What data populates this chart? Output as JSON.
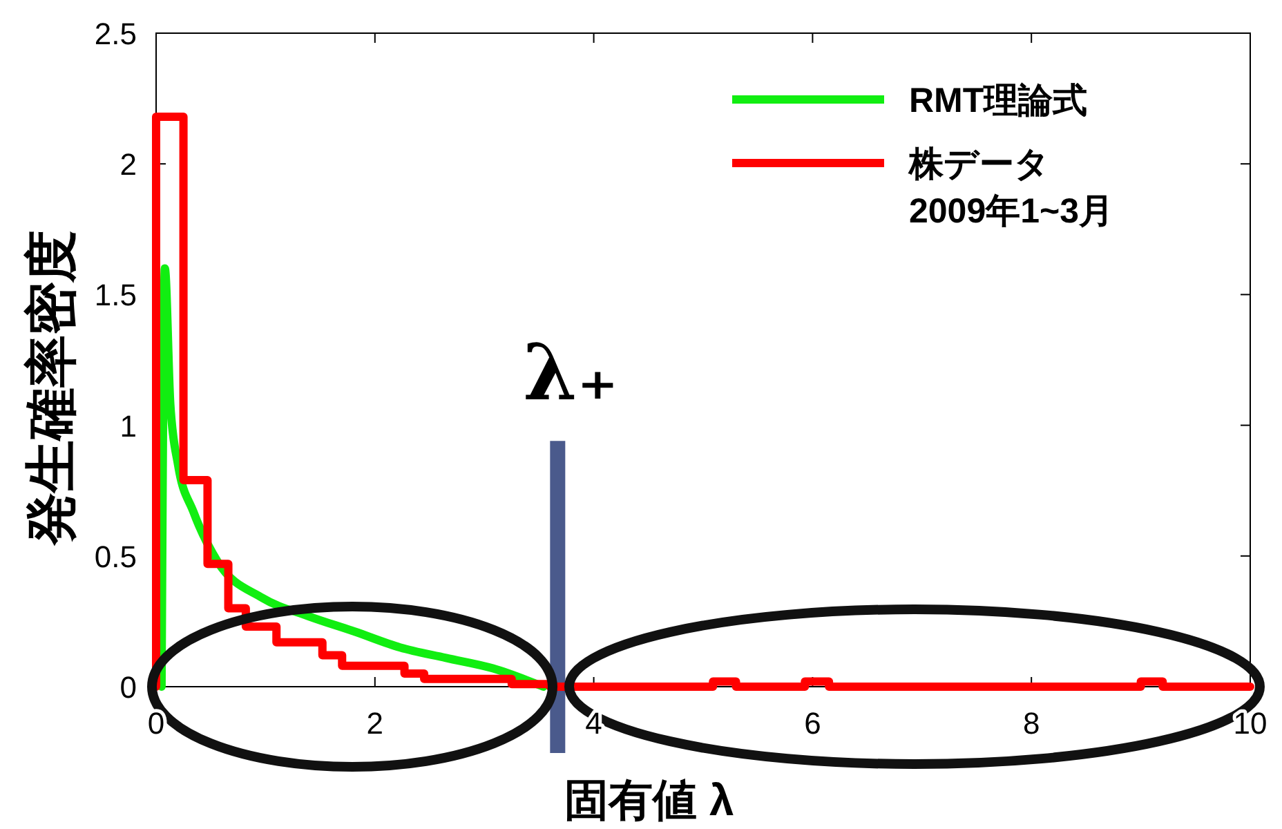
{
  "chart_data": {
    "type": "step",
    "xlabel": "固有値 λ",
    "ylabel": "発生確率密度",
    "xlim": [
      0,
      10
    ],
    "ylim": [
      0,
      2.5
    ],
    "xticks": [
      0,
      2,
      4,
      6,
      8,
      10
    ],
    "yticks": [
      0,
      0.5,
      1,
      1.5,
      2,
      2.5
    ],
    "grid": false,
    "legend": "top right",
    "series": [
      {
        "type": "line",
        "name": "RMT理論式",
        "color": "#11ee11",
        "x": [
          0.05,
          0.08,
          0.13,
          0.2,
          0.34,
          0.56,
          0.97,
          1.39,
          1.82,
          2.23,
          2.65,
          3.08,
          3.54
        ],
        "values": [
          0,
          1.6,
          1.08,
          0.85,
          0.67,
          0.48,
          0.34,
          0.27,
          0.21,
          0.15,
          0.11,
          0.07,
          0
        ]
      },
      {
        "name": "株データ\n2009年1~3月",
        "color": "#ff0000",
        "x": [
          0,
          0,
          0.25,
          0.47,
          0.66,
          0.82,
          1.1,
          1.52,
          1.7,
          2.27,
          2.45,
          3.25,
          3.6,
          5.09,
          5.3,
          5.93,
          6.15,
          9.0,
          9.2,
          10
        ],
        "values": [
          0,
          2.18,
          0.79,
          0.47,
          0.3,
          0.23,
          0.17,
          0.12,
          0.08,
          0.05,
          0.03,
          0.01,
          0,
          0.02,
          0,
          0.02,
          0,
          0.02,
          0,
          0
        ]
      }
    ],
    "ref_lines": [
      {
        "axis": "x",
        "value": 3.67,
        "label": "λ₊",
        "color": "#4a5a8c"
      }
    ]
  }
}
